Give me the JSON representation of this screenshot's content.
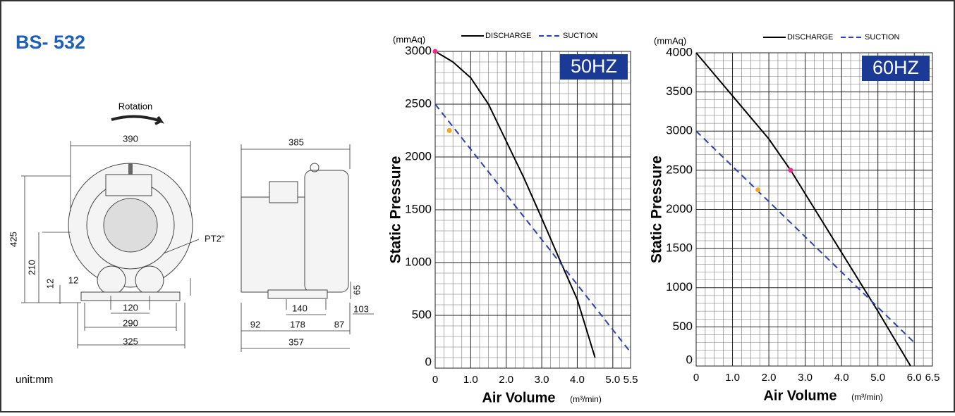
{
  "header": {
    "model": "BS- 532"
  },
  "drawing": {
    "rotation": "Rotation",
    "port": "PT2\"",
    "unit": "unit:mm",
    "front": {
      "width": "390",
      "height": "425",
      "center_height": "210",
      "foot_height": "12",
      "foot_gap": "12",
      "bolt_inner": "120",
      "bolt_mid": "290",
      "bolt_outer": "325"
    },
    "side": {
      "depth": "385",
      "flange": "65",
      "bolt_span": "140",
      "offset": "103",
      "left": "92",
      "mid": "178",
      "right": "87",
      "total": "357"
    }
  },
  "chart_data": [
    {
      "type": "line",
      "badge": "50HZ",
      "y_unit": "(mmAq)",
      "ylabel": "Static Pressure",
      "xlabel": "Air Volume",
      "x_unit": "(m³/min)",
      "xlim": [
        0,
        5.5
      ],
      "ylim": [
        0,
        3000
      ],
      "xticks": [
        0,
        {
          "value": 1,
          "label": "1.0"
        },
        {
          "value": 2,
          "label": "2.0"
        },
        {
          "value": 3,
          "label": "3.0"
        },
        {
          "value": 4,
          "label": "4.0"
        },
        {
          "value": 5,
          "label": "5.0"
        },
        5.5
      ],
      "yticks": [
        0,
        500,
        1000,
        1500,
        2000,
        2500,
        3000
      ],
      "grid": true,
      "series": [
        {
          "name": "DISCHARGE",
          "color": "#000000",
          "dashed": false,
          "x": [
            0,
            0.5,
            1,
            1.5,
            2,
            2.5,
            3,
            3.5,
            4,
            4.5
          ],
          "values": [
            3000,
            2900,
            2750,
            2500,
            2150,
            1800,
            1420,
            1030,
            650,
            100
          ]
        },
        {
          "name": "SUCTION",
          "color": "#2d3fb3",
          "dashed": true,
          "x": [
            0,
            5.5
          ],
          "values": [
            2500,
            150
          ]
        }
      ],
      "markers": [
        {
          "x": 0,
          "y": 3000,
          "color": "#ee2a8c"
        },
        {
          "x": 0.4,
          "y": 2250,
          "color": "#f5a623"
        }
      ]
    },
    {
      "type": "line",
      "badge": "60HZ",
      "y_unit": "(mmAq)",
      "ylabel": "Static Pressure",
      "xlabel": "Air Volume",
      "x_unit": "(m³/min)",
      "xlim": [
        0,
        6.5
      ],
      "ylim": [
        0,
        4000
      ],
      "xticks": [
        0,
        {
          "value": 1,
          "label": "1.0"
        },
        {
          "value": 2,
          "label": "2.0"
        },
        {
          "value": 3,
          "label": "3.0"
        },
        {
          "value": 4,
          "label": "4.0"
        },
        {
          "value": 5,
          "label": "5.0"
        },
        {
          "value": 6,
          "label": "6.0"
        },
        6.5
      ],
      "yticks": [
        0,
        500,
        1000,
        1500,
        2000,
        2500,
        3000,
        3500,
        4000
      ],
      "grid": true,
      "series": [
        {
          "name": "DISCHARGE",
          "color": "#000000",
          "dashed": false,
          "x": [
            0,
            1,
            2,
            2.6,
            3,
            4,
            5,
            5.9
          ],
          "values": [
            4000,
            3450,
            2900,
            2500,
            2200,
            1450,
            700,
            0
          ]
        },
        {
          "name": "SUCTION",
          "color": "#2d3fb3",
          "dashed": true,
          "x": [
            0,
            6
          ],
          "values": [
            3000,
            300
          ]
        }
      ],
      "markers": [
        {
          "x": 2.6,
          "y": 2500,
          "color": "#ee2a8c"
        },
        {
          "x": 1.7,
          "y": 2250,
          "color": "#f5a623"
        }
      ]
    }
  ]
}
